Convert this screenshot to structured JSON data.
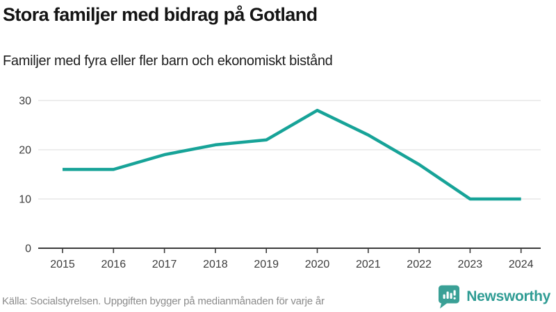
{
  "header": {
    "title": "Stora familjer med bidrag på Gotland",
    "subtitle": "Familjer med fyra eller fler barn och ekonomiskt bistånd"
  },
  "chart_data": {
    "type": "line",
    "categories": [
      "2015",
      "2016",
      "2017",
      "2018",
      "2019",
      "2020",
      "2021",
      "2022",
      "2023",
      "2024"
    ],
    "values": [
      16,
      16,
      19,
      21,
      22,
      28,
      23,
      17,
      10,
      10
    ],
    "title": "Stora familjer med bidrag på Gotland",
    "subtitle": "Familjer med fyra eller fler barn och ekonomiskt bistånd",
    "xlabel": "",
    "ylabel": "",
    "ylim": [
      0,
      30
    ],
    "yticks": [
      0,
      10,
      20,
      30
    ],
    "grid": true,
    "legend": "none",
    "line_color": "#17a398"
  },
  "colors": {
    "accent_teal": "#17a398",
    "logo_teal": "#2f9c94",
    "grid_grey": "#e2e2e2",
    "axis_dark": "#3a3a3a",
    "footer_grey": "#8b8b8b"
  },
  "footer": {
    "source": "Källa: Socialstyrelsen. Uppgiften bygger på medianmånaden för varje år",
    "brand": "Newsworthy"
  }
}
